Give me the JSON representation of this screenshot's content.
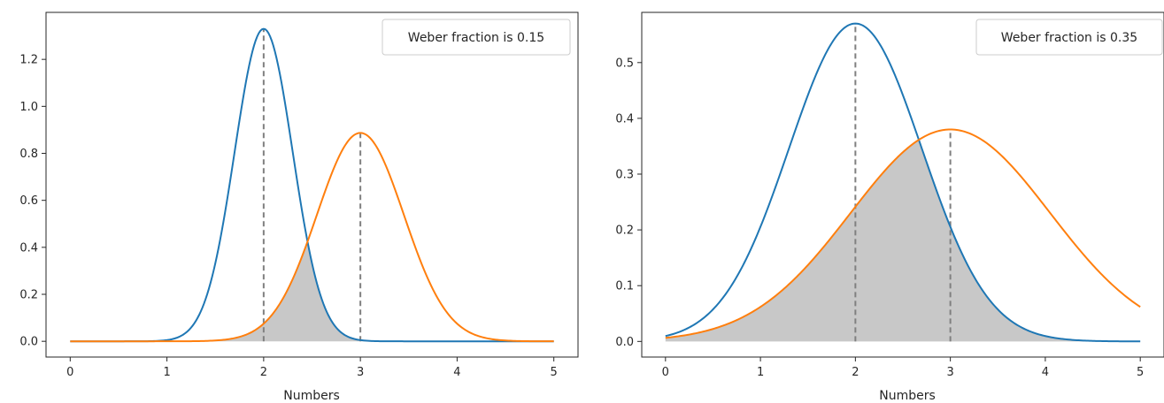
{
  "chart_data": [
    {
      "type": "line",
      "title": "",
      "xlabel": "Numbers",
      "ylabel": "",
      "xlim": [
        -0.25,
        5.25
      ],
      "ylim": [
        -0.067,
        1.4
      ],
      "xticks": [
        0,
        1,
        2,
        3,
        4,
        5
      ],
      "yticks": [
        0.0,
        0.2,
        0.4,
        0.6,
        0.8,
        1.0,
        1.2
      ],
      "xtick_labels": [
        "0",
        "1",
        "2",
        "3",
        "4",
        "5"
      ],
      "ytick_labels": [
        "0.0",
        "0.2",
        "0.4",
        "0.6",
        "0.8",
        "1.0",
        "1.2"
      ],
      "grid": false,
      "legend_position": "top-right",
      "annotation": "Weber fraction is 0.15",
      "x_range": [
        0,
        5
      ],
      "overlap_shaded": true,
      "overlap_color": "#c8c8c8",
      "series": [
        {
          "mean": 2,
          "sd": 0.3,
          "peak": 1.33,
          "color": "#1f77b4"
        },
        {
          "mean": 3,
          "sd": 0.45,
          "peak": 0.887,
          "color": "#ff7f0e"
        }
      ],
      "vlines": [
        {
          "x": 2,
          "y_top": 1.33,
          "color": "#808080",
          "style": "dashed"
        },
        {
          "x": 3,
          "y_top": 0.887,
          "color": "#808080",
          "style": "dashed"
        }
      ]
    },
    {
      "type": "line",
      "title": "",
      "xlabel": "Numbers",
      "ylabel": "",
      "xlim": [
        -0.25,
        5.25
      ],
      "ylim": [
        -0.028,
        0.59
      ],
      "xticks": [
        0,
        1,
        2,
        3,
        4,
        5
      ],
      "yticks": [
        0.0,
        0.1,
        0.2,
        0.3,
        0.4,
        0.5
      ],
      "xtick_labels": [
        "0",
        "1",
        "2",
        "3",
        "4",
        "5"
      ],
      "ytick_labels": [
        "0.0",
        "0.1",
        "0.2",
        "0.3",
        "0.4",
        "0.5"
      ],
      "grid": false,
      "legend_position": "top-right",
      "annotation": "Weber fraction is 0.35",
      "x_range": [
        0,
        5
      ],
      "overlap_shaded": true,
      "overlap_color": "#c8c8c8",
      "series": [
        {
          "mean": 2,
          "sd": 0.7,
          "peak": 0.57,
          "color": "#1f77b4"
        },
        {
          "mean": 3,
          "sd": 1.05,
          "peak": 0.38,
          "color": "#ff7f0e"
        }
      ],
      "vlines": [
        {
          "x": 2,
          "y_top": 0.57,
          "color": "#808080",
          "style": "dashed"
        },
        {
          "x": 3,
          "y_top": 0.38,
          "color": "#808080",
          "style": "dashed"
        }
      ]
    }
  ]
}
